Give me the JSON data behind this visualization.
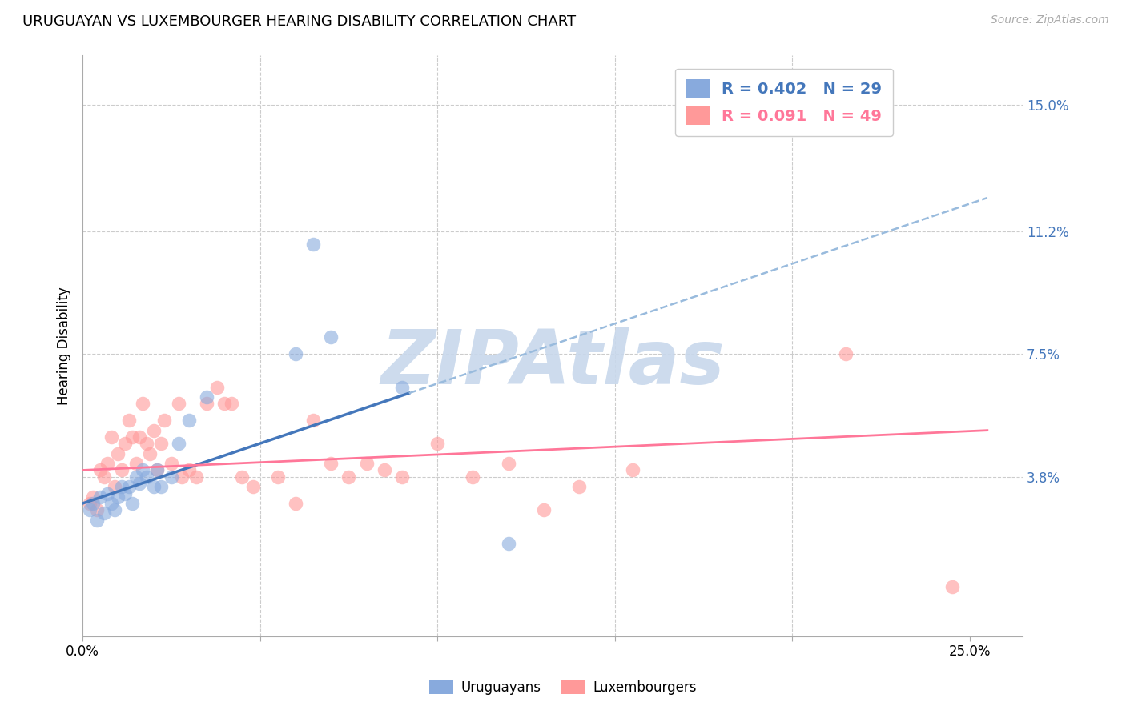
{
  "title": "URUGUAYAN VS LUXEMBOURGER HEARING DISABILITY CORRELATION CHART",
  "source": "Source: ZipAtlas.com",
  "ylabel": "Hearing Disability",
  "xlim": [
    0.0,
    0.265
  ],
  "ylim": [
    -0.01,
    0.165
  ],
  "ytick_positions": [
    0.038,
    0.075,
    0.112,
    0.15
  ],
  "yticklabels": [
    "3.8%",
    "7.5%",
    "11.2%",
    "15.0%"
  ],
  "uruguayan_R": 0.402,
  "uruguayan_N": 29,
  "luxembourger_R": 0.091,
  "luxembourger_N": 49,
  "uruguayan_color": "#88AADD",
  "luxembourger_color": "#FF9999",
  "uruguayan_line_color": "#4477BB",
  "luxembourger_line_color": "#FF7799",
  "dash_line_color": "#99BBDD",
  "background_color": "#FFFFFF",
  "grid_color": "#CCCCCC",
  "watermark_color": "#C8D8EC",
  "uruguayan_points_x": [
    0.002,
    0.003,
    0.004,
    0.005,
    0.006,
    0.007,
    0.008,
    0.009,
    0.01,
    0.011,
    0.012,
    0.013,
    0.014,
    0.015,
    0.016,
    0.017,
    0.018,
    0.02,
    0.021,
    0.022,
    0.025,
    0.027,
    0.03,
    0.035,
    0.06,
    0.065,
    0.07,
    0.09,
    0.12
  ],
  "uruguayan_points_y": [
    0.028,
    0.03,
    0.025,
    0.032,
    0.027,
    0.033,
    0.03,
    0.028,
    0.032,
    0.035,
    0.033,
    0.035,
    0.03,
    0.038,
    0.036,
    0.04,
    0.038,
    0.035,
    0.04,
    0.035,
    0.038,
    0.048,
    0.055,
    0.062,
    0.075,
    0.108,
    0.08,
    0.065,
    0.018
  ],
  "luxembourger_points_x": [
    0.002,
    0.003,
    0.004,
    0.005,
    0.006,
    0.007,
    0.008,
    0.009,
    0.01,
    0.011,
    0.012,
    0.013,
    0.014,
    0.015,
    0.016,
    0.017,
    0.018,
    0.019,
    0.02,
    0.021,
    0.022,
    0.023,
    0.025,
    0.027,
    0.028,
    0.03,
    0.032,
    0.035,
    0.038,
    0.04,
    0.042,
    0.045,
    0.048,
    0.055,
    0.06,
    0.065,
    0.07,
    0.075,
    0.08,
    0.085,
    0.09,
    0.1,
    0.11,
    0.12,
    0.13,
    0.14,
    0.155,
    0.215,
    0.245
  ],
  "luxembourger_points_y": [
    0.03,
    0.032,
    0.028,
    0.04,
    0.038,
    0.042,
    0.05,
    0.035,
    0.045,
    0.04,
    0.048,
    0.055,
    0.05,
    0.042,
    0.05,
    0.06,
    0.048,
    0.045,
    0.052,
    0.04,
    0.048,
    0.055,
    0.042,
    0.06,
    0.038,
    0.04,
    0.038,
    0.06,
    0.065,
    0.06,
    0.06,
    0.038,
    0.035,
    0.038,
    0.03,
    0.055,
    0.042,
    0.038,
    0.042,
    0.04,
    0.038,
    0.048,
    0.038,
    0.042,
    0.028,
    0.035,
    0.04,
    0.075,
    0.005
  ],
  "blue_line_start_x": 0.0,
  "blue_line_start_y": 0.03,
  "blue_line_solid_end_x": 0.092,
  "blue_line_solid_end_y": 0.076,
  "blue_line_dash_end_x": 0.255,
  "blue_line_dash_end_y": 0.122,
  "pink_line_start_x": 0.0,
  "pink_line_start_y": 0.04,
  "pink_line_end_x": 0.255,
  "pink_line_end_y": 0.052
}
